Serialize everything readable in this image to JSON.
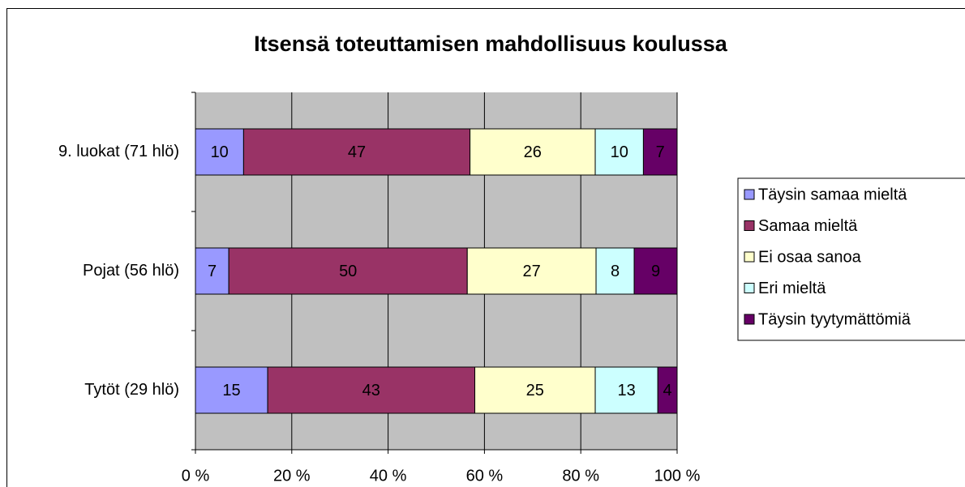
{
  "chart_data": {
    "type": "bar",
    "orientation": "horizontal",
    "stacked": "percent",
    "title": "Itsensä toteuttamisen mahdollisuus koulussa",
    "categories": [
      "9. luokat (71 hlö)",
      "Pojat (56 hlö)",
      "Tytöt (29 hlö)"
    ],
    "series": [
      {
        "name": "Täysin samaa mieltä",
        "color": "#9999ff",
        "values": [
          10,
          7,
          15
        ]
      },
      {
        "name": "Samaa mieltä",
        "color": "#993366",
        "values": [
          47,
          50,
          43
        ]
      },
      {
        "name": "Ei osaa sanoa",
        "color": "#ffffcc",
        "values": [
          26,
          27,
          25
        ]
      },
      {
        "name": "Eri mieltä",
        "color": "#ccffff",
        "values": [
          10,
          8,
          13
        ]
      },
      {
        "name": "Täysin tyytymättömiä",
        "color": "#660066",
        "values": [
          7,
          9,
          4
        ]
      }
    ],
    "xlim": [
      0,
      100
    ],
    "xticks": [
      {
        "value": 0,
        "label": "0 %"
      },
      {
        "value": 20,
        "label": "20 %"
      },
      {
        "value": 40,
        "label": "40 %"
      },
      {
        "value": 60,
        "label": "60 %"
      },
      {
        "value": 80,
        "label": "80 %"
      },
      {
        "value": 100,
        "label": "100 %"
      }
    ],
    "grid": true,
    "legend": "right"
  }
}
